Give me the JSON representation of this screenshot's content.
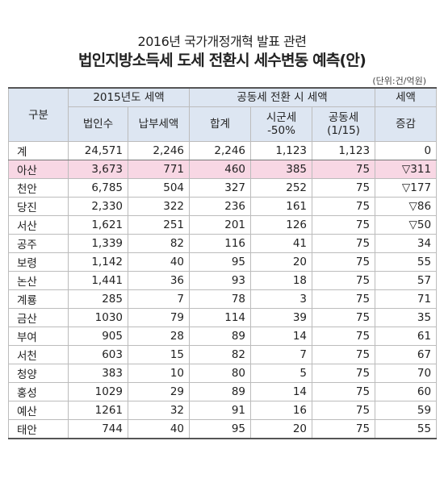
{
  "title_line1": "2016년 국가개정개혁 발표 관련",
  "title_line2": "법인지방소득세 도세 전환시 세수변동 예측(안)",
  "unit": "(단위:건/억원)",
  "headers": {
    "category": "구분",
    "group1": "2015년도 세액",
    "group2": "공동세 전환 시 세액",
    "group3": "세액",
    "cols": [
      "법인수",
      "납부세액",
      "합계",
      "시군세\n-50%",
      "공동세\n(1/15)",
      "증감"
    ]
  },
  "rows": [
    {
      "name": "계",
      "corp": "24,571",
      "paid": "2,246",
      "sum": "2,246",
      "city": "1,123",
      "joint": "1,123",
      "change": "0"
    },
    {
      "name": "아산",
      "corp": "3,673",
      "paid": "771",
      "sum": "460",
      "city": "385",
      "joint": "75",
      "change": "▽311"
    },
    {
      "name": "천안",
      "corp": "6,785",
      "paid": "504",
      "sum": "327",
      "city": "252",
      "joint": "75",
      "change": "▽177"
    },
    {
      "name": "당진",
      "corp": "2,330",
      "paid": "322",
      "sum": "236",
      "city": "161",
      "joint": "75",
      "change": "▽86"
    },
    {
      "name": "서산",
      "corp": "1,621",
      "paid": "251",
      "sum": "201",
      "city": "126",
      "joint": "75",
      "change": "▽50"
    },
    {
      "name": "공주",
      "corp": "1,339",
      "paid": "82",
      "sum": "116",
      "city": "41",
      "joint": "75",
      "change": "34"
    },
    {
      "name": "보령",
      "corp": "1,142",
      "paid": "40",
      "sum": "95",
      "city": "20",
      "joint": "75",
      "change": "55"
    },
    {
      "name": "논산",
      "corp": "1,441",
      "paid": "36",
      "sum": "93",
      "city": "18",
      "joint": "75",
      "change": "57"
    },
    {
      "name": "계룡",
      "corp": "285",
      "paid": "7",
      "sum": "78",
      "city": "3",
      "joint": "75",
      "change": "71"
    },
    {
      "name": "금산",
      "corp": "1030",
      "paid": "79",
      "sum": "114",
      "city": "39",
      "joint": "75",
      "change": "35"
    },
    {
      "name": "부여",
      "corp": "905",
      "paid": "28",
      "sum": "89",
      "city": "14",
      "joint": "75",
      "change": "61"
    },
    {
      "name": "서천",
      "corp": "603",
      "paid": "15",
      "sum": "82",
      "city": "7",
      "joint": "75",
      "change": "67"
    },
    {
      "name": "청양",
      "corp": "383",
      "paid": "10",
      "sum": "80",
      "city": "5",
      "joint": "75",
      "change": "70"
    },
    {
      "name": "홍성",
      "corp": "1029",
      "paid": "29",
      "sum": "89",
      "city": "14",
      "joint": "75",
      "change": "60"
    },
    {
      "name": "예산",
      "corp": "1261",
      "paid": "32",
      "sum": "91",
      "city": "16",
      "joint": "75",
      "change": "59"
    },
    {
      "name": "태안",
      "corp": "744",
      "paid": "40",
      "sum": "95",
      "city": "20",
      "joint": "75",
      "change": "55"
    }
  ],
  "highlight_row": "아산",
  "colors": {
    "header_bg": "#dde6f2",
    "highlight_bg": "#f8d7e4",
    "border": "#bcbcbc"
  }
}
